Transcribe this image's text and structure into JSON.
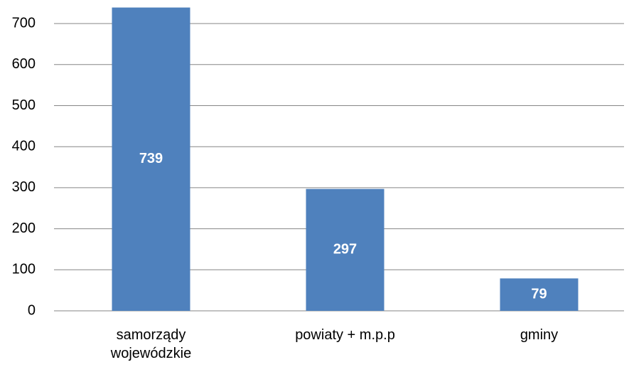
{
  "chart_data": {
    "type": "bar",
    "categories": [
      "samorządy wojewódzkie",
      "powiaty + m.p.p",
      "gminy"
    ],
    "values": [
      739,
      297,
      79
    ],
    "color": "#4f81bd",
    "ylim": [
      0,
      740
    ],
    "yticks": [
      0,
      100,
      200,
      300,
      400,
      500,
      600,
      700
    ],
    "grid": true
  }
}
